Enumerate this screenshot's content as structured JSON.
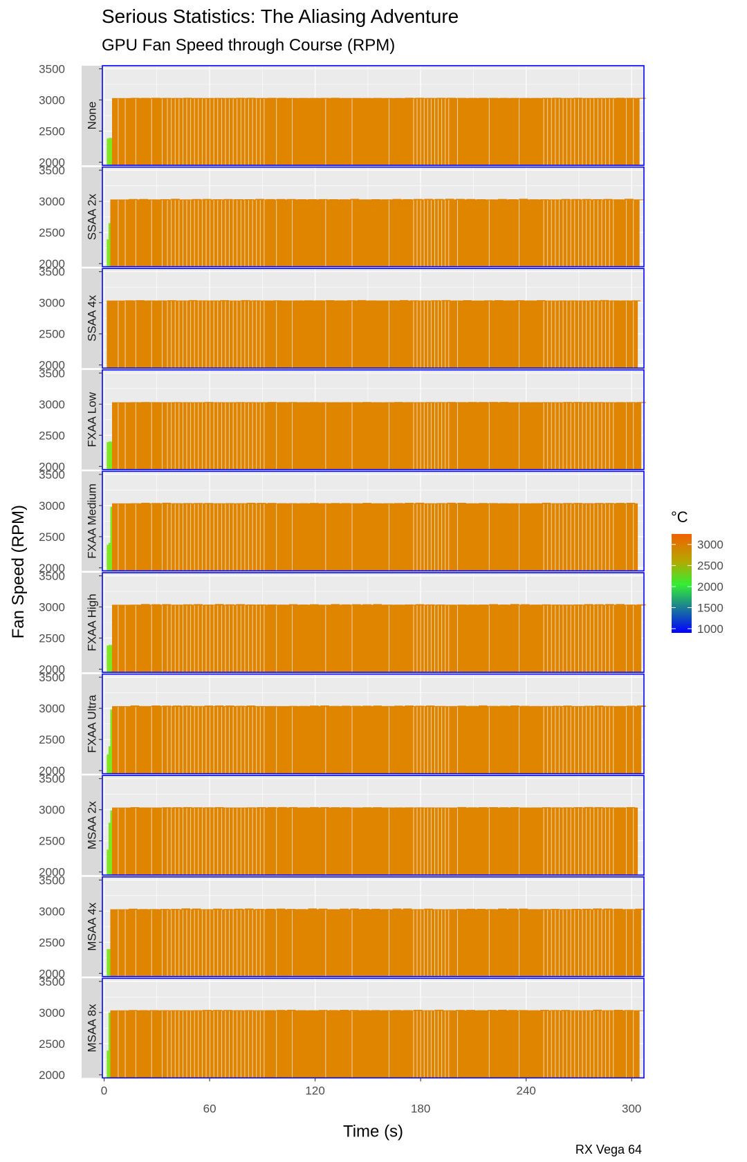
{
  "title": "Serious Statistics: The Aliasing Adventure",
  "subtitle": "GPU Fan Speed through Course (RPM)",
  "caption": "RX Vega 64",
  "colors": {
    "panel_bg": "#EBEBEB",
    "grid": "#FFFFFF",
    "strip_bg": "#D9D9D9",
    "panel_border": "#0000FF",
    "axis_text": "#4D4D4D",
    "bar_main": "#E08500",
    "bar_startup": "#7FE61E"
  },
  "chart_data": {
    "type": "bar",
    "title": "Serious Statistics: The Aliasing Adventure",
    "subtitle": "GPU Fan Speed through Course (RPM)",
    "xlabel": "Time (s)",
    "ylabel": "Fan Speed (RPM)",
    "xlim": [
      -1,
      307
    ],
    "ylim": [
      1950,
      3550
    ],
    "x_ticks": [
      0,
      60,
      120,
      180,
      240,
      300
    ],
    "x_tick_labels": [
      "0",
      "60",
      "120",
      "180",
      "240",
      "300"
    ],
    "y_ticks": [
      2000,
      2500,
      3000,
      3500
    ],
    "y_tick_labels": [
      "2000",
      "2500",
      "3000",
      "3500"
    ],
    "grid": true,
    "facet": "rows",
    "legend": {
      "title": "°C",
      "position": "right",
      "range": [
        900,
        3250
      ],
      "ticks": [
        1000,
        1500,
        2000,
        2500,
        3000
      ],
      "tick_labels": [
        "1000",
        "1500",
        "2000",
        "2500",
        "3000"
      ],
      "gradient": [
        {
          "value": 900,
          "color": "#0000FF"
        },
        {
          "value": 2050,
          "color": "#33EE33"
        },
        {
          "value": 2600,
          "color": "#B5A800"
        },
        {
          "value": 3250,
          "color": "#F06000"
        }
      ]
    },
    "panels": [
      {
        "label": "None",
        "startup": [
          {
            "x": 2,
            "y": 2380
          },
          {
            "x": 3,
            "y": 2390
          },
          {
            "x": 4,
            "y": 2390
          }
        ],
        "start": 5,
        "end": 304,
        "value": 3030,
        "wobble": 5
      },
      {
        "label": "SSAA 2x",
        "startup": [
          {
            "x": 2,
            "y": 2390
          },
          {
            "x": 3,
            "y": 2650
          }
        ],
        "start": 4,
        "end": 304,
        "value": 3030,
        "wobble": 12
      },
      {
        "label": "SSAA 4x",
        "startup": [],
        "start": 2,
        "end": 303,
        "value": 3035,
        "wobble": 8
      },
      {
        "label": "FXAA Low",
        "startup": [
          {
            "x": 2,
            "y": 2390
          },
          {
            "x": 3,
            "y": 2400
          },
          {
            "x": 4,
            "y": 2400
          }
        ],
        "start": 5,
        "end": 305,
        "value": 3030,
        "wobble": 5
      },
      {
        "label": "FXAA Medium",
        "startup": [
          {
            "x": 2,
            "y": 2370
          },
          {
            "x": 3,
            "y": 2400
          },
          {
            "x": 4,
            "y": 2980
          }
        ],
        "start": 5,
        "end": 303,
        "value": 3035,
        "wobble": 10
      },
      {
        "label": "FXAA High",
        "startup": [
          {
            "x": 2,
            "y": 2380
          },
          {
            "x": 3,
            "y": 2390
          },
          {
            "x": 4,
            "y": 2390
          }
        ],
        "start": 5,
        "end": 305,
        "value": 3035,
        "wobble": 12
      },
      {
        "label": "FXAA Ultra",
        "startup": [
          {
            "x": 2,
            "y": 2260
          },
          {
            "x": 3,
            "y": 2390
          },
          {
            "x": 4,
            "y": 2980
          }
        ],
        "start": 5,
        "end": 305,
        "value": 3035,
        "wobble": 12
      },
      {
        "label": "MSAA 2x",
        "startup": [
          {
            "x": 2,
            "y": 2360
          },
          {
            "x": 3,
            "y": 2790
          },
          {
            "x": 4,
            "y": 2990
          }
        ],
        "start": 5,
        "end": 303,
        "value": 3035,
        "wobble": 8
      },
      {
        "label": "MSAA 4x",
        "startup": [
          {
            "x": 2,
            "y": 2390
          },
          {
            "x": 3,
            "y": 2390
          }
        ],
        "start": 4,
        "end": 305,
        "value": 3030,
        "wobble": 14
      },
      {
        "label": "MSAA 8x",
        "startup": [
          {
            "x": 2,
            "y": 2390
          },
          {
            "x": 3,
            "y": 3000
          }
        ],
        "start": 4,
        "end": 304,
        "value": 3035,
        "wobble": 10
      }
    ]
  }
}
